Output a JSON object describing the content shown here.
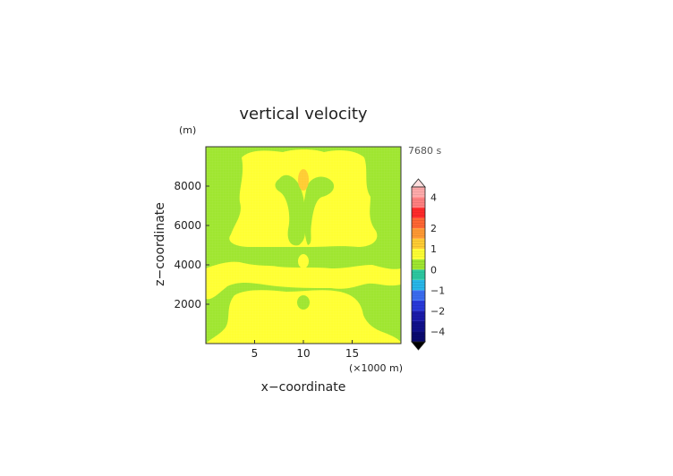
{
  "chart_data": {
    "type": "heatmap",
    "title": "vertical velocity",
    "time_label": "7680 s",
    "xlabel": "x−coordinate",
    "ylabel": "z−coordinate",
    "x_unit_label": "(×1000 m)",
    "y_unit_label": "(m)",
    "xlim": [
      0,
      20
    ],
    "ylim": [
      0,
      10000
    ],
    "x_ticks": [
      5,
      10,
      15
    ],
    "y_ticks": [
      2000,
      4000,
      6000,
      8000
    ],
    "colorbar": {
      "tick_labels": [
        "4",
        "2",
        "1",
        "0",
        "−1",
        "−2",
        "−4"
      ],
      "tick_values": [
        4,
        2,
        1,
        0,
        -1,
        -2,
        -4
      ],
      "levels": [
        {
          "from": -5,
          "to": -4,
          "color": "#0a0a6e"
        },
        {
          "from": -4,
          "to": -3,
          "color": "#10108a"
        },
        {
          "from": -3,
          "to": -2,
          "color": "#1a1aa8"
        },
        {
          "from": -2,
          "to": -1.5,
          "color": "#2838d8"
        },
        {
          "from": -1.5,
          "to": -1,
          "color": "#3a6cf0"
        },
        {
          "from": -1,
          "to": -0.5,
          "color": "#27b6e8"
        },
        {
          "from": -0.5,
          "to": 0,
          "color": "#2cc8a0"
        },
        {
          "from": 0,
          "to": 0.5,
          "color": "#9fe630"
        },
        {
          "from": 0.5,
          "to": 1,
          "color": "#ffff33"
        },
        {
          "from": 1,
          "to": 1.5,
          "color": "#ffcc33"
        },
        {
          "from": 1.5,
          "to": 2,
          "color": "#ff9933"
        },
        {
          "from": 2,
          "to": 2.5,
          "color": "#ff6633"
        },
        {
          "from": 2.5,
          "to": 3,
          "color": "#ff2a2a"
        },
        {
          "from": 3,
          "to": 4,
          "color": "#ff8080"
        },
        {
          "from": 4,
          "to": 5,
          "color": "#ffaaaa"
        }
      ]
    },
    "field_levels_present": {
      "0_to_0.5": "#9fe630",
      "0.5_to_1": "#ffff33",
      "1_to_1.5": "#ffcc33"
    }
  }
}
